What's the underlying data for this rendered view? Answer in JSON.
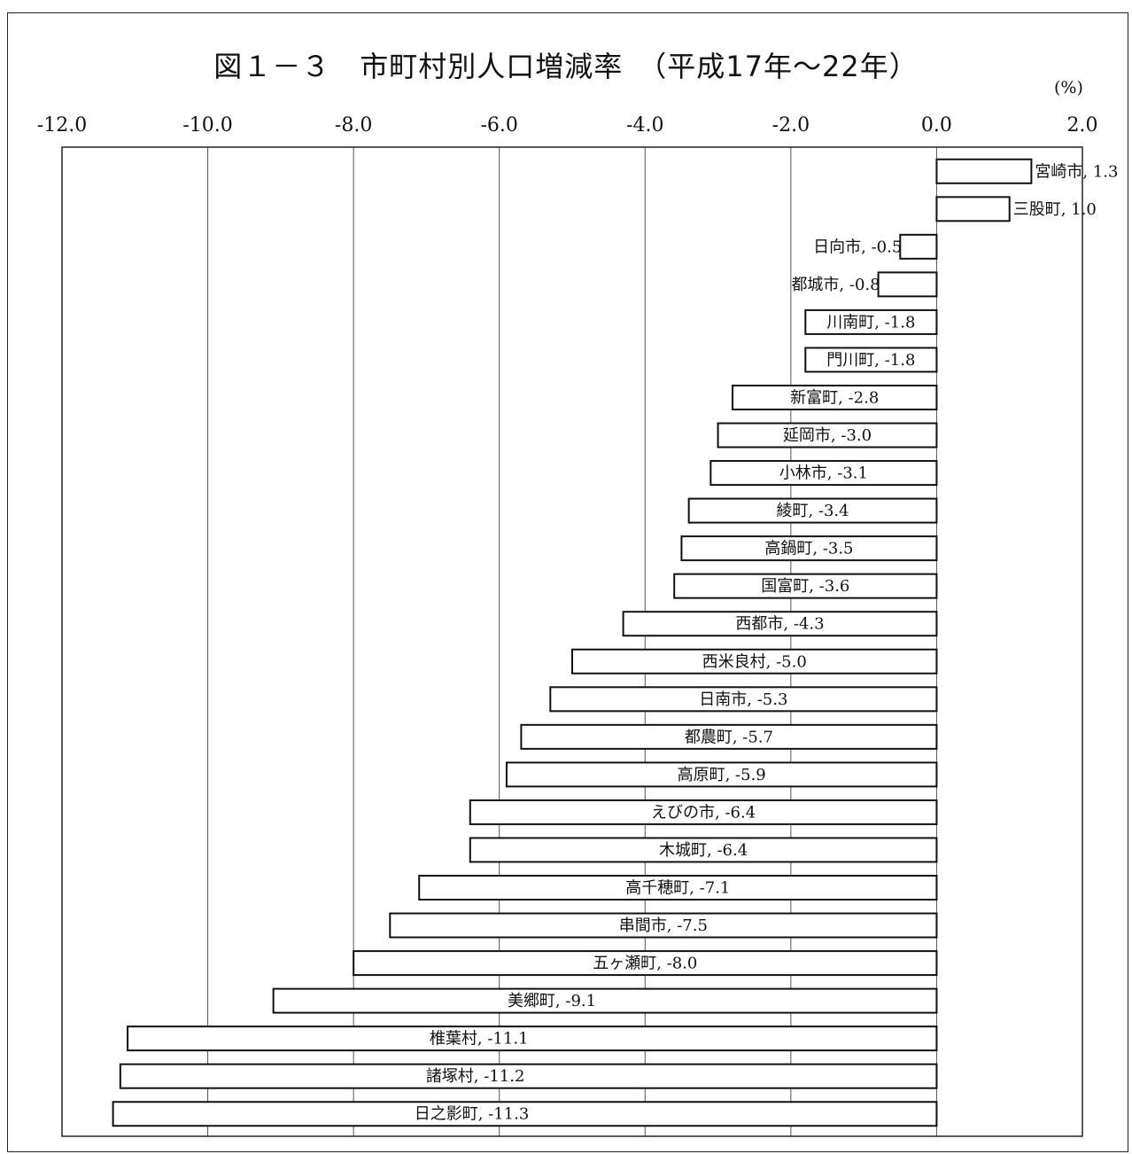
{
  "title": "図１－３　市町村別人口増減率　（平成17年～22年）",
  "unit_label": "(%)",
  "chart_data": {
    "type": "bar",
    "orientation": "horizontal",
    "title": "図１－３　市町村別人口増減率　（平成17年～22年）",
    "unit": "(%)",
    "xlim": [
      -12.0,
      2.0
    ],
    "xticks": [
      "-12.0",
      "-10.0",
      "-8.0",
      "-6.0",
      "-4.0",
      "-2.0",
      "0.0",
      "2.0"
    ],
    "xtick_values": [
      -12,
      -10,
      -8,
      -6,
      -4,
      -2,
      0,
      2
    ],
    "grid": "vertical",
    "categories": [
      "宮崎市",
      "三股町",
      "日向市",
      "都城市",
      "川南町",
      "門川町",
      "新富町",
      "延岡市",
      "小林市",
      "綾町",
      "高鍋町",
      "国富町",
      "西都市",
      "西米良村",
      "日南市",
      "都農町",
      "高原町",
      "えびの市",
      "木城町",
      "高千穂町",
      "串間市",
      "五ヶ瀬町",
      "美郷町",
      "椎葉村",
      "諸塚村",
      "日之影町"
    ],
    "values": [
      1.3,
      1.0,
      -0.5,
      -0.8,
      -1.8,
      -1.8,
      -2.8,
      -3.0,
      -3.1,
      -3.4,
      -3.5,
      -3.6,
      -4.3,
      -5.0,
      -5.3,
      -5.7,
      -5.9,
      -6.4,
      -6.4,
      -7.1,
      -7.5,
      -8.0,
      -9.1,
      -11.1,
      -11.2,
      -11.3
    ],
    "labels": [
      "宮崎市, 1.3",
      "三股町, 1.0",
      "日向市, -0.5",
      "都城市, -0.8",
      "川南町, -1.8",
      "門川町, -1.8",
      "新富町, -2.8",
      "延岡市, -3.0",
      "小林市, -3.1",
      "綾町, -3.4",
      "高鍋町, -3.5",
      "国富町, -3.6",
      "西都市, -4.3",
      "西米良村, -5.0",
      "日南市, -5.3",
      "都農町, -5.7",
      "高原町, -5.9",
      "えびの市, -6.4",
      "木城町, -6.4",
      "高千穂町, -7.1",
      "串間市, -7.5",
      "五ヶ瀬町, -8.0",
      "美郷町, -9.1",
      "椎葉村, -11.1",
      "諸塚村, -11.2",
      "日之影町, -11.3"
    ]
  }
}
